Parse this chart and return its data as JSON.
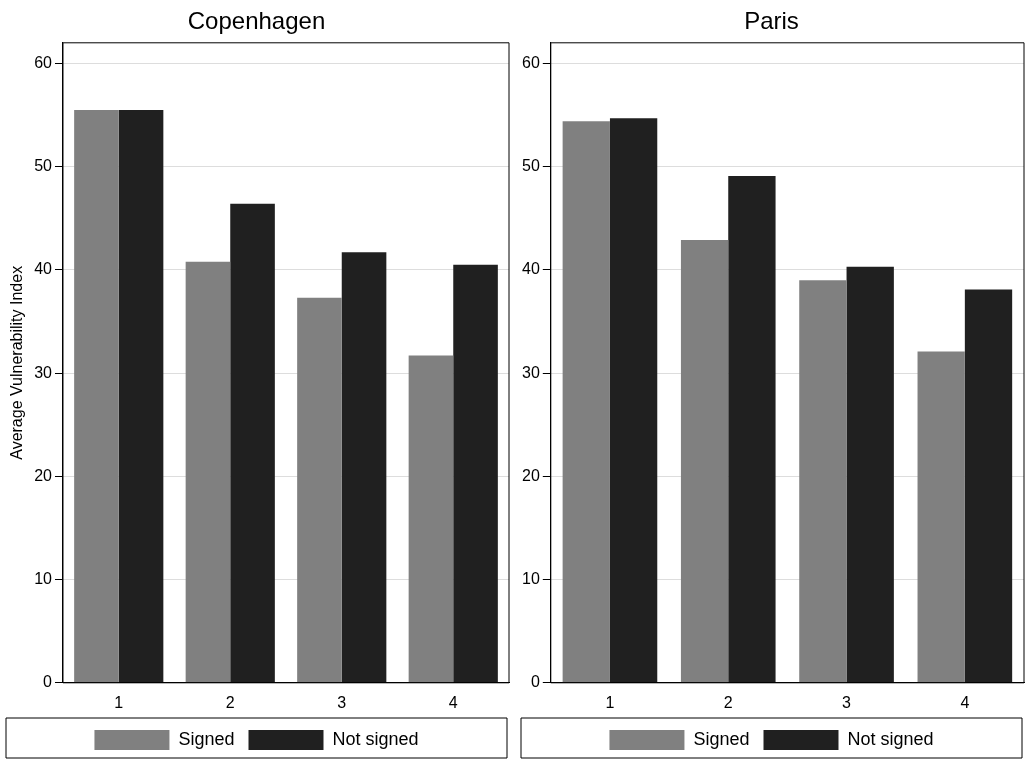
{
  "chart_data": [
    {
      "type": "bar",
      "title": "Copenhagen",
      "ylabel": "Average Vulnerability Index",
      "categories": [
        "1",
        "2",
        "3",
        "4"
      ],
      "series": [
        {
          "name": "Signed",
          "color": "#808080",
          "values": [
            55.5,
            40.8,
            37.3,
            31.7
          ]
        },
        {
          "name": "Not signed",
          "color": "#202020",
          "values": [
            55.5,
            46.4,
            41.7,
            40.5
          ]
        }
      ],
      "ylim": [
        0,
        62
      ],
      "yticks": [
        0,
        10,
        20,
        30,
        40,
        50,
        60
      ],
      "grid": "y",
      "legend": "bottom"
    },
    {
      "type": "bar",
      "title": "Paris",
      "categories": [
        "1",
        "2",
        "3",
        "4"
      ],
      "series": [
        {
          "name": "Signed",
          "color": "#808080",
          "values": [
            54.4,
            42.9,
            39.0,
            32.1
          ]
        },
        {
          "name": "Not signed",
          "color": "#202020",
          "values": [
            54.7,
            49.1,
            40.3,
            38.1
          ]
        }
      ],
      "ylim": [
        0,
        62
      ],
      "yticks": [
        0,
        10,
        20,
        30,
        40,
        50,
        60
      ],
      "grid": "y",
      "legend": "bottom"
    }
  ]
}
